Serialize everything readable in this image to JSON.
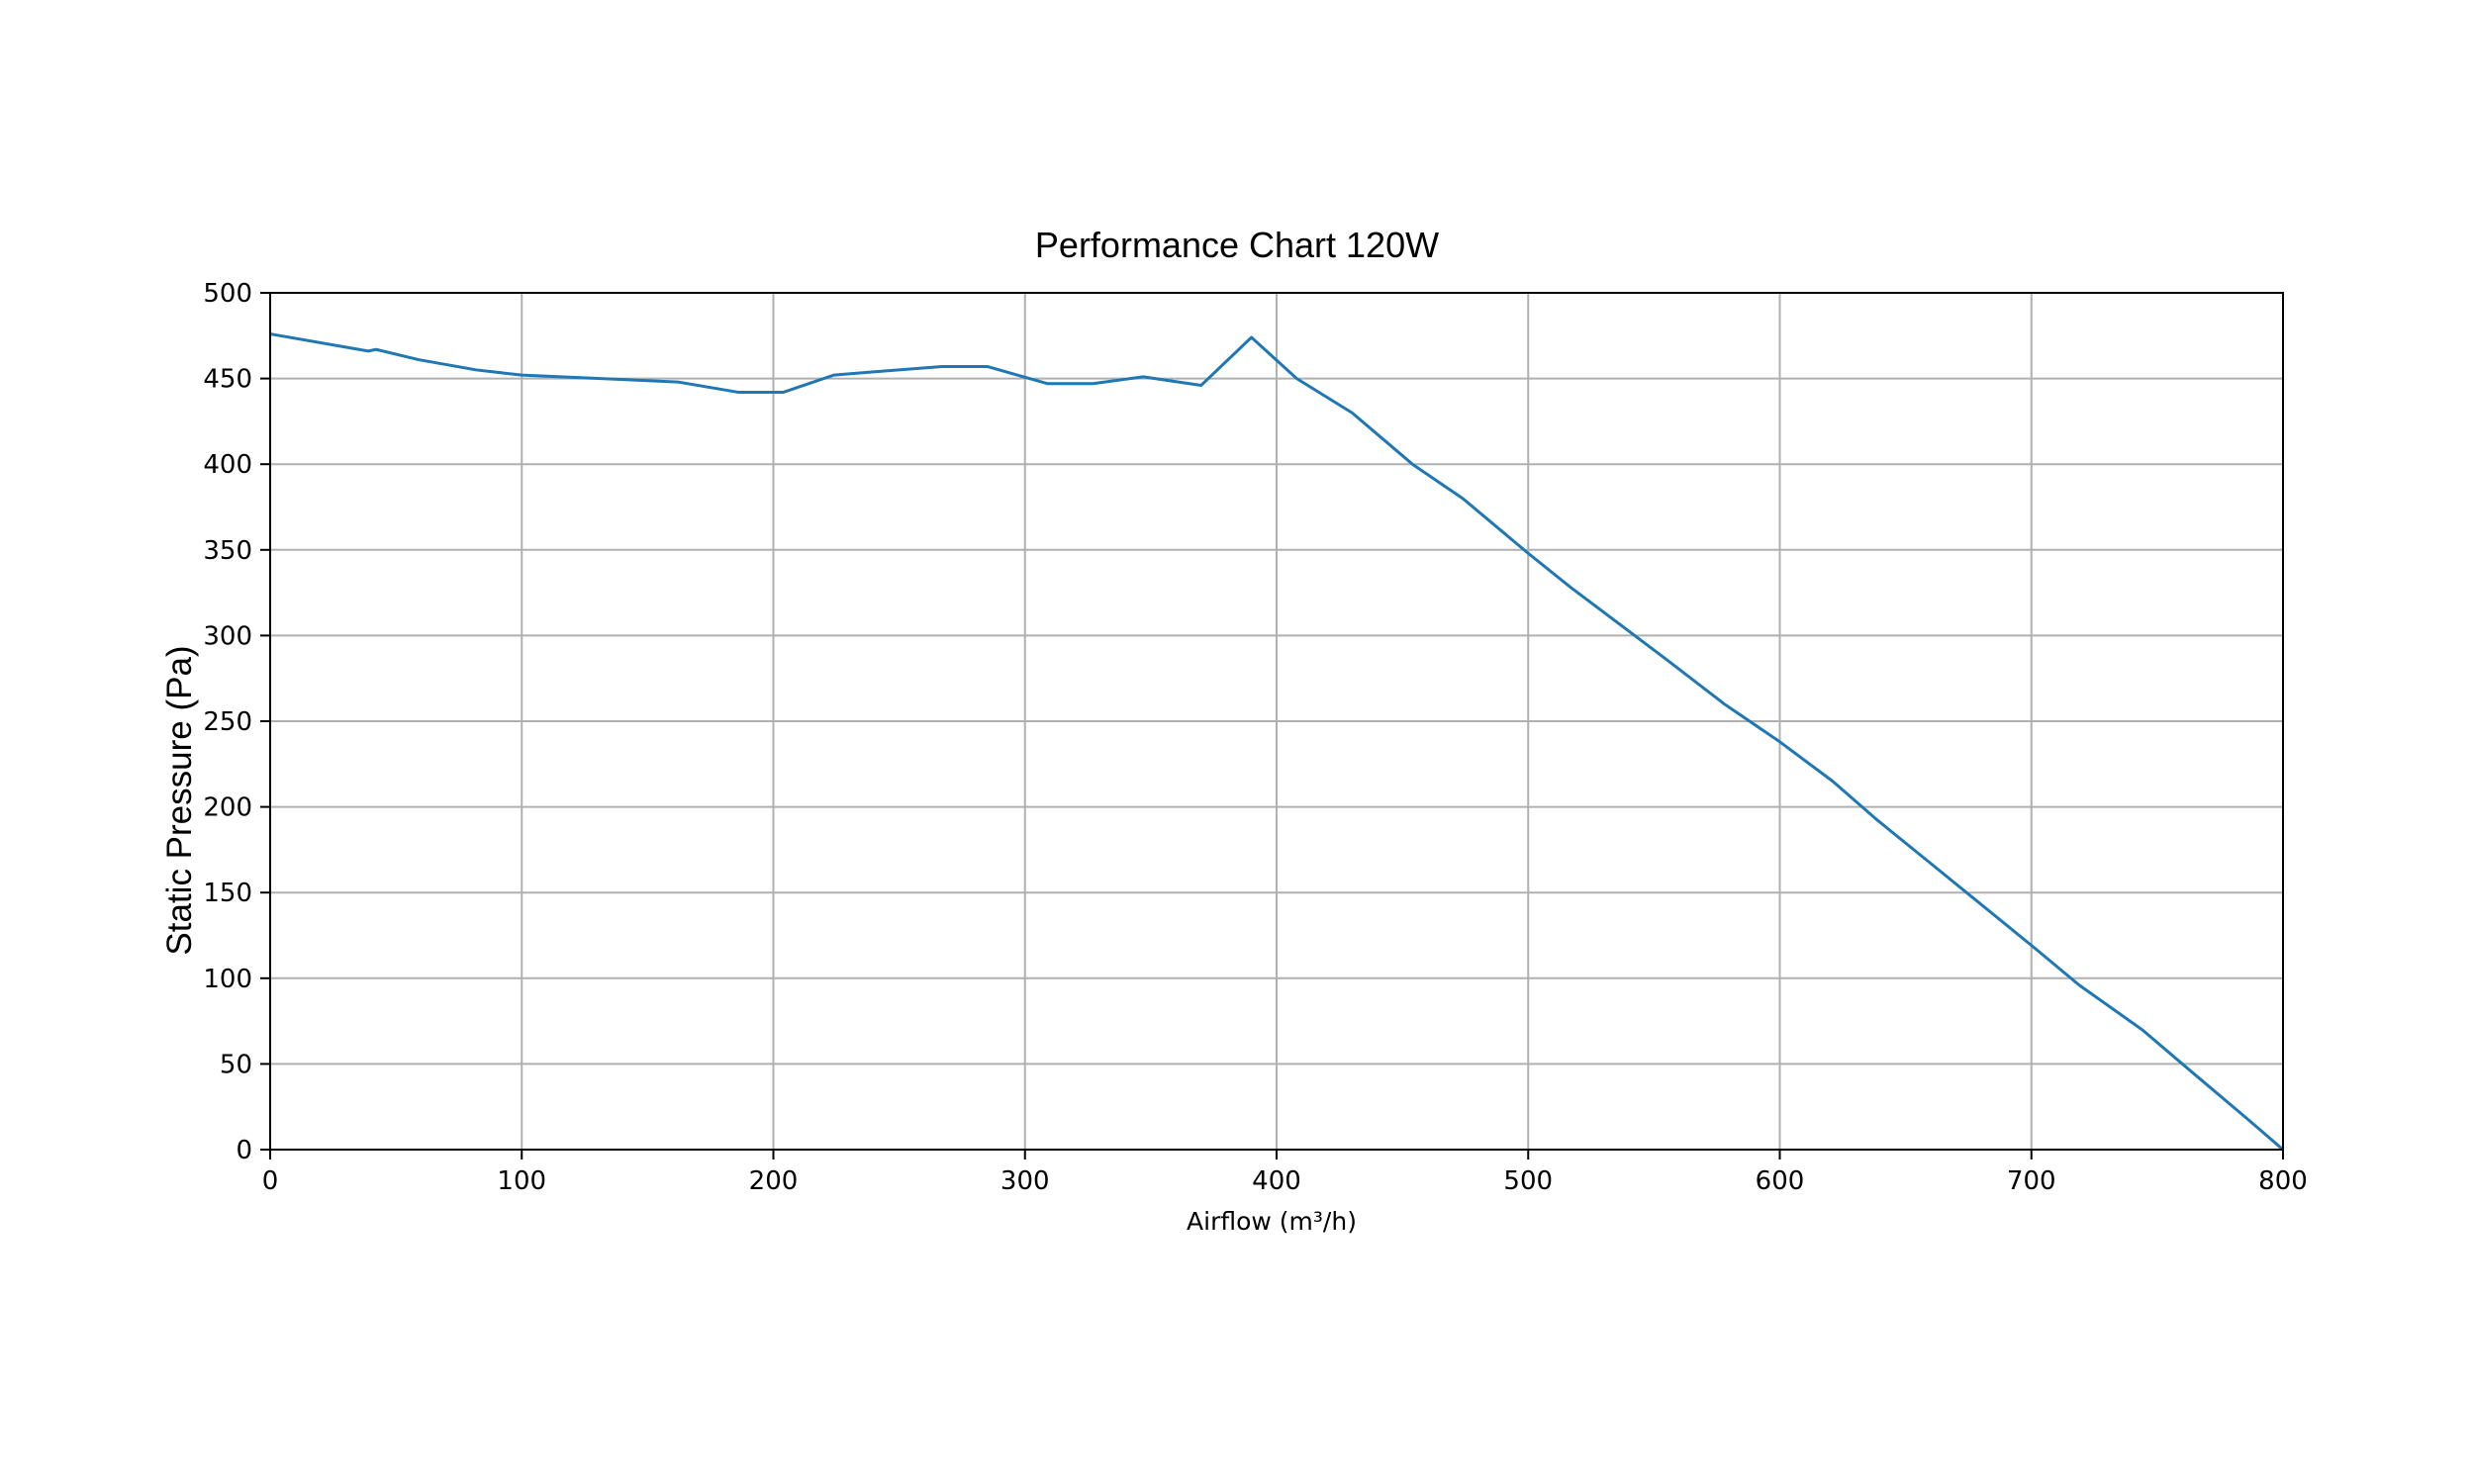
{
  "chart_data": {
    "type": "line",
    "title": "Performance Chart 120W",
    "xlabel": "Airflow (m³/h)",
    "ylabel": "Static Pressure (Pa)",
    "xlim": [
      0,
      800
    ],
    "ylim": [
      0,
      500
    ],
    "xticks": [
      0,
      100,
      200,
      300,
      400,
      500,
      600,
      700,
      800
    ],
    "yticks": [
      0,
      50,
      100,
      150,
      200,
      250,
      300,
      350,
      400,
      450,
      500
    ],
    "grid": true,
    "line_color": "#1f77b4",
    "series": [
      {
        "x": [
          0,
          39,
          42,
          59,
          82,
          100,
          162,
          186,
          204,
          224,
          241,
          267,
          285,
          309,
          327,
          347,
          370,
          390,
          408,
          430,
          454,
          474,
          500,
          517,
          555,
          578,
          600,
          621,
          639,
          660,
          701,
          719,
          744,
          764,
          785,
          800
        ],
        "y": [
          476,
          466,
          467,
          461,
          455,
          452,
          448,
          442,
          442,
          452,
          454,
          457,
          457,
          447,
          447,
          451,
          446,
          474,
          450,
          430,
          400,
          380,
          348,
          328,
          286,
          260,
          238,
          215,
          192,
          167,
          118,
          96,
          70,
          45,
          19,
          0
        ]
      }
    ]
  }
}
